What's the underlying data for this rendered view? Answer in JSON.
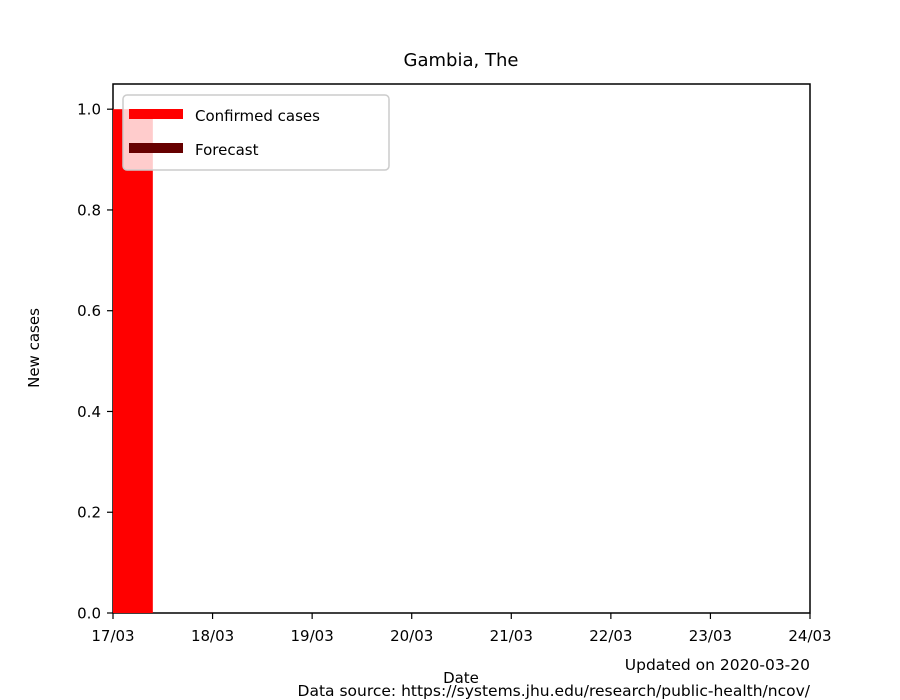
{
  "chart_data": {
    "type": "bar",
    "title": "Gambia, The",
    "xlabel": "Date",
    "ylabel": "New cases",
    "x_ticks": [
      "17/03",
      "18/03",
      "19/03",
      "20/03",
      "21/03",
      "22/03",
      "23/03",
      "24/03"
    ],
    "xlim": [
      0,
      7
    ],
    "ylim": [
      0,
      1.05
    ],
    "y_ticks": [
      0.0,
      0.2,
      0.4,
      0.6,
      0.8,
      1.0
    ],
    "y_tick_labels": [
      "0.0",
      "0.2",
      "0.4",
      "0.6",
      "0.8",
      "1.0"
    ],
    "series": [
      {
        "name": "Confirmed cases",
        "color": "#ff0000",
        "points": [
          {
            "date": "17/03",
            "x": 0,
            "value": 1.0
          }
        ]
      },
      {
        "name": "Forecast",
        "color": "#660000",
        "points": []
      }
    ],
    "bar_width_days": 0.4,
    "legend_position": "top-left",
    "grid": false
  },
  "footer": {
    "updated": "Updated on 2020-03-20",
    "source": "Data source: https://systems.jhu.edu/research/public-health/ncov/"
  }
}
